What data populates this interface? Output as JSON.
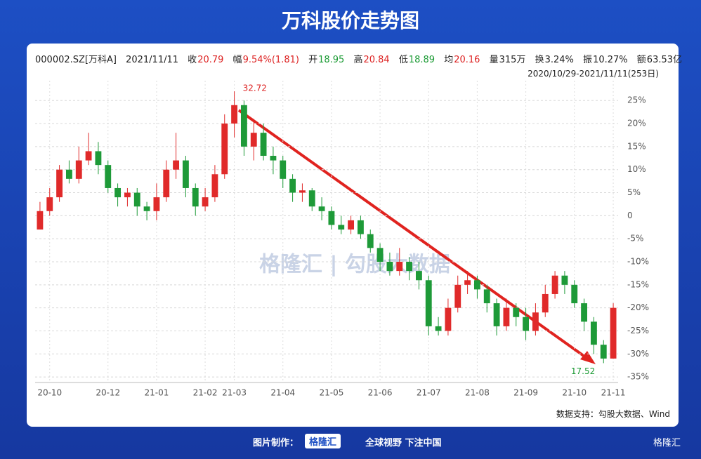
{
  "header": {
    "title": "万科股价走势图",
    "info": [
      "000002.SZ[万科A]",
      "2021/11/11",
      "收",
      "20.79",
      "幅",
      "9.54%(1.81)",
      "开",
      "18.95",
      "高",
      "20.84",
      "低",
      "18.89",
      "均",
      "20.16",
      "量",
      "315万",
      "换",
      "3.24%",
      "振",
      "10.27%",
      "额",
      "63.53亿"
    ],
    "range": "2020/10/29-2021/11/11(253日)"
  },
  "chart_data": {
    "type": "candlestick",
    "categories": [
      null,
      "20-10",
      null,
      null,
      null,
      null,
      null,
      "20-12",
      null,
      null,
      null,
      null,
      "21-01",
      null,
      null,
      null,
      null,
      "21-02",
      null,
      null,
      "21-03",
      null,
      null,
      null,
      null,
      "21-04",
      null,
      null,
      null,
      null,
      "21-05",
      null,
      null,
      null,
      null,
      "21-06",
      null,
      null,
      null,
      null,
      "21-07",
      null,
      null,
      null,
      null,
      "21-08",
      null,
      null,
      null,
      null,
      "21-09",
      null,
      null,
      null,
      null,
      "21-10",
      null,
      null,
      null,
      "21-11"
    ],
    "open": [
      -3,
      1,
      4,
      10,
      8,
      12,
      14,
      11,
      6,
      4,
      5,
      2,
      1,
      4,
      10,
      12,
      6,
      2,
      4,
      9,
      20,
      24,
      15,
      18,
      13,
      12,
      8,
      5,
      5.5,
      2,
      1,
      -2,
      -3,
      -1,
      -4,
      -7,
      -10,
      -12,
      -10,
      -12,
      -14,
      -24,
      -25,
      -20,
      -15,
      -14,
      -16,
      -19,
      -24,
      -20,
      -22,
      -25,
      -21,
      -17,
      -13,
      -15,
      -19,
      -23,
      -28,
      -31
    ],
    "close": [
      1,
      4,
      10,
      8,
      12,
      14,
      11,
      6,
      4,
      5,
      2,
      1,
      4,
      10,
      12,
      6,
      2,
      4,
      9,
      20,
      24,
      15,
      18,
      13,
      12,
      8,
      5,
      5.5,
      2,
      1,
      -2,
      -3,
      -1,
      -4,
      -7,
      -10,
      -12,
      -10,
      -12,
      -14,
      -24,
      -25,
      -20,
      -15,
      -14,
      -16,
      -19,
      -24,
      -20,
      -22,
      -25,
      -21,
      -17,
      -13,
      -15,
      -19,
      -23,
      -28,
      -31,
      -20
    ],
    "high": [
      3,
      6,
      11,
      12,
      15,
      18,
      16,
      12,
      7,
      6,
      6,
      3,
      7,
      12,
      18,
      13,
      7,
      6,
      11,
      22,
      27,
      25,
      21,
      20,
      15,
      13,
      9,
      7,
      6,
      4,
      2,
      0,
      0,
      0,
      -3,
      -6,
      -8,
      -7,
      -9,
      -10,
      -13,
      -22,
      -18,
      -13,
      -12,
      -13,
      -15,
      -18,
      -18,
      -19,
      -20,
      -19,
      -15,
      -12,
      -12,
      -14,
      -18,
      -22,
      -27,
      -19
    ],
    "low": [
      -3,
      0,
      3,
      7,
      7,
      11,
      9,
      5,
      2,
      2,
      0,
      -1,
      -1,
      3,
      8,
      4,
      0,
      1,
      3,
      8,
      17,
      13,
      12,
      12,
      9,
      6,
      3,
      3,
      1,
      -1,
      -3,
      -4,
      -4,
      -5,
      -8,
      -12,
      -13,
      -13,
      -14,
      -16,
      -26,
      -26,
      -26,
      -21,
      -17,
      -18,
      -21,
      -26,
      -25,
      -24,
      -27,
      -26,
      -22,
      -18,
      -17,
      -20,
      -25,
      -30,
      -32,
      -31
    ],
    "up_color": "#e02a2a",
    "down_color": "#1e9a38",
    "ylim": [
      -36.2,
      29.3
    ],
    "yticks": [
      {
        "value": 25,
        "label": "25%"
      },
      {
        "value": 20,
        "label": "20%"
      },
      {
        "value": 15,
        "label": "15%"
      },
      {
        "value": 10,
        "label": "10%"
      },
      {
        "value": 5,
        "label": "5%"
      },
      0,
      {
        "value": -5,
        "label": "-5%"
      },
      {
        "value": -10,
        "label": "-10%"
      },
      {
        "value": -15,
        "label": "-15%"
      },
      {
        "value": -20,
        "label": "-20%"
      },
      {
        "value": -25,
        "label": "-25%"
      },
      {
        "value": -30,
        "label": "-30%"
      },
      {
        "value": -35,
        "label": "-35%"
      }
    ],
    "grid": true,
    "annotations": [
      "32.72",
      "17.52"
    ]
  },
  "footer": {
    "source": "数据支持：勾股大数据、Wind",
    "made_by": "图片制作：",
    "brand": "格隆汇",
    "slogan": "全球视野 下注中国",
    "watermark": "格隆汇 | 勾股大数据"
  }
}
